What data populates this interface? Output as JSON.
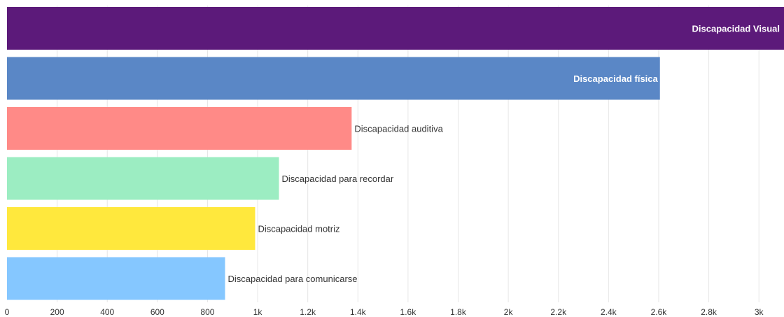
{
  "chart_data": {
    "type": "bar",
    "orientation": "horizontal",
    "categories": [
      "Discapacidad Visual",
      "Discapacidad física",
      "Discapacidad auditiva",
      "Discapacidad para recordar",
      "Discapacidad motriz",
      "Discapacidad para comunicarse"
    ],
    "values": [
      3150,
      2605,
      1375,
      1085,
      990,
      870
    ],
    "colors": [
      "#5c1a7a",
      "#5a87c6",
      "#ff8a87",
      "#9cedc2",
      "#ffe83d",
      "#85c7ff"
    ],
    "label_inside": [
      true,
      true,
      false,
      false,
      false,
      false
    ],
    "x_ticks": [
      {
        "value": 0,
        "label": "0"
      },
      {
        "value": 200,
        "label": "200"
      },
      {
        "value": 400,
        "label": "400"
      },
      {
        "value": 600,
        "label": "600"
      },
      {
        "value": 800,
        "label": "800"
      },
      {
        "value": 1000,
        "label": "1k"
      },
      {
        "value": 1200,
        "label": "1.2k"
      },
      {
        "value": 1400,
        "label": "1.4k"
      },
      {
        "value": 1600,
        "label": "1.6k"
      },
      {
        "value": 1800,
        "label": "1.8k"
      },
      {
        "value": 2000,
        "label": "2k"
      },
      {
        "value": 2200,
        "label": "2.2k"
      },
      {
        "value": 2400,
        "label": "2.4k"
      },
      {
        "value": 2600,
        "label": "2.6k"
      },
      {
        "value": 2800,
        "label": "2.8k"
      },
      {
        "value": 3000,
        "label": "3k"
      }
    ],
    "xlim": [
      0,
      3100
    ],
    "grid": true,
    "title": "",
    "xlabel": "",
    "ylabel": ""
  }
}
